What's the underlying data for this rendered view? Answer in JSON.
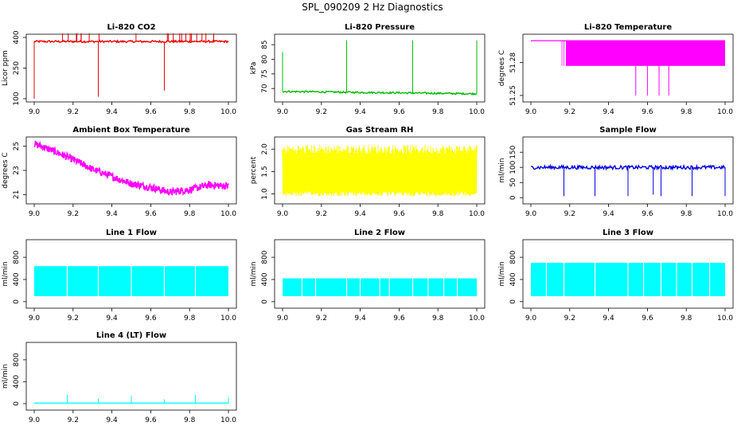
{
  "page_title": "SPL_090209  2 Hz Diagnostics",
  "chart_data": [
    {
      "type": "line",
      "title": "Li-820 CO2",
      "ylabel": "Licor ppm",
      "color": "#ee0000",
      "x": [
        9.0,
        10.0
      ],
      "xlim": [
        9.0,
        10.0
      ],
      "ylim": [
        100,
        400
      ],
      "xticks": [
        "9.0",
        "9.2",
        "9.4",
        "9.6",
        "9.8",
        "10.0"
      ],
      "yticks": [
        100,
        250,
        400
      ],
      "yticklabels": [
        "100",
        "250",
        "400"
      ],
      "series": [
        {
          "name": "CO2",
          "baseline": 380,
          "noise": 5,
          "spikes_up": 420,
          "dips": [
            [
              9.0,
              100
            ],
            [
              9.33,
              110
            ],
            [
              9.67,
              140
            ]
          ]
        }
      ]
    },
    {
      "type": "line",
      "title": "Li-820 Pressure",
      "ylabel": "kPa",
      "color": "#00bb00",
      "x": [
        9.0,
        10.0
      ],
      "xlim": [
        9.0,
        10.0
      ],
      "ylim": [
        66.5,
        87.5
      ],
      "xticks": [
        "9.0",
        "9.2",
        "9.4",
        "9.6",
        "9.8",
        "10.0"
      ],
      "yticks": [
        70,
        75,
        80,
        85
      ],
      "yticklabels": [
        "70",
        "75",
        "80",
        "85"
      ],
      "series": [
        {
          "name": "Pressure",
          "start": 69,
          "end": 68.2,
          "noise": 0.3,
          "spikes_up": [
            [
              9.0,
              82.5
            ],
            [
              9.33,
              86.5
            ],
            [
              9.67,
              86.5
            ],
            [
              10.0,
              86.5
            ]
          ]
        }
      ]
    },
    {
      "type": "line",
      "title": "Li-820 Temperature",
      "ylabel": "degrees C",
      "color": "#ff00ff",
      "x": [
        9.0,
        10.0
      ],
      "xlim": [
        9.0,
        10.0
      ],
      "ylim": [
        51.247,
        51.303
      ],
      "xticks": [
        "9.0",
        "9.2",
        "9.4",
        "9.6",
        "9.8",
        "10.0"
      ],
      "yticks": [
        51.25,
        51.28
      ],
      "yticklabels": [
        "51.25",
        "51.28"
      ],
      "series": [
        {
          "name": "Temperature",
          "high": 51.3,
          "low": 51.277,
          "band_start": 9.18,
          "dips": [
            [
              9.54,
              51.25
            ],
            [
              9.6,
              51.25
            ],
            [
              9.66,
              51.25
            ],
            [
              9.71,
              51.25
            ]
          ]
        }
      ]
    },
    {
      "type": "line",
      "title": "Ambient Box Temperature",
      "ylabel": "degrees C",
      "color": "#ff00ff",
      "x": [
        9.0,
        9.1,
        9.2,
        9.3,
        9.4,
        9.5,
        9.6,
        9.7,
        9.8,
        9.9,
        10.0
      ],
      "xlim": [
        9.0,
        10.0
      ],
      "ylim": [
        20.5,
        25.5
      ],
      "xticks": [
        "9.0",
        "9.2",
        "9.4",
        "9.6",
        "9.8",
        "10.0"
      ],
      "yticks": [
        21,
        23,
        25
      ],
      "yticklabels": [
        "21",
        "23",
        "25"
      ],
      "series": [
        {
          "name": "Ambient",
          "values": [
            25.2,
            24.6,
            23.9,
            23.1,
            22.5,
            21.9,
            21.6,
            21.2,
            21.4,
            21.8,
            21.7
          ],
          "noise": 0.3
        }
      ]
    },
    {
      "type": "line",
      "title": "Gas Stream RH",
      "ylabel": "percent",
      "color": "#ffff00",
      "x": [
        9.0,
        10.0
      ],
      "xlim": [
        9.0,
        10.0
      ],
      "ylim": [
        0.85,
        2.2
      ],
      "xticks": [
        "9.0",
        "9.2",
        "9.4",
        "9.6",
        "9.8",
        "10.0"
      ],
      "yticks": [
        1.0,
        1.5,
        2.0
      ],
      "yticklabels": [
        "1.0",
        "1.5",
        "2.0"
      ],
      "series": [
        {
          "name": "RH",
          "low": 1.05,
          "high": 1.9,
          "min": 0.95,
          "max": 2.1
        }
      ]
    },
    {
      "type": "line",
      "title": "Sample Flow",
      "ylabel": "ml/min",
      "color": "#0000dd",
      "x": [
        9.0,
        10.0
      ],
      "xlim": [
        9.0,
        10.0
      ],
      "ylim": [
        -10,
        190
      ],
      "xticks": [
        "9.0",
        "9.2",
        "9.4",
        "9.6",
        "9.8",
        "10.0"
      ],
      "yticks": [
        0,
        50,
        100,
        150
      ],
      "yticklabels": [
        "0",
        "50",
        "100",
        "150"
      ],
      "series": [
        {
          "name": "Sample",
          "baseline": 100,
          "noise": 6,
          "dips": [
            [
              9.17,
              5
            ],
            [
              9.33,
              5
            ],
            [
              9.5,
              5
            ],
            [
              9.63,
              10
            ],
            [
              9.67,
              5
            ],
            [
              9.83,
              5
            ],
            [
              10.0,
              5
            ]
          ]
        }
      ]
    },
    {
      "type": "line",
      "title": "Line 1 Flow",
      "ylabel": "ml/min",
      "color": "#00ffff",
      "x": [
        9.0,
        10.0
      ],
      "xlim": [
        9.0,
        10.0
      ],
      "ylim": [
        -60,
        1060
      ],
      "xticks": [
        "9.0",
        "9.2",
        "9.4",
        "9.6",
        "9.8",
        "10.0"
      ],
      "yticks": [
        0,
        400,
        800
      ],
      "yticklabels": [
        "0",
        "400",
        "800"
      ],
      "series": [
        {
          "name": "Line 1",
          "low": 100,
          "high": 640,
          "gaps": [
            9.17,
            9.33,
            9.5,
            9.67,
            9.83
          ]
        }
      ]
    },
    {
      "type": "line",
      "title": "Line 2 Flow",
      "ylabel": "ml/min",
      "color": "#00ffff",
      "x": [
        9.0,
        10.0
      ],
      "xlim": [
        9.0,
        10.0
      ],
      "ylim": [
        -60,
        1060
      ],
      "xticks": [
        "9.0",
        "9.2",
        "9.4",
        "9.6",
        "9.8",
        "10.0"
      ],
      "yticks": [
        0,
        400,
        800
      ],
      "yticklabels": [
        "0",
        "400",
        "800"
      ],
      "series": [
        {
          "name": "Line 2",
          "low": 100,
          "high": 420,
          "gaps": [
            9.1,
            9.17,
            9.33,
            9.4,
            9.5,
            9.55,
            9.67,
            9.75,
            9.83,
            9.9
          ]
        }
      ]
    },
    {
      "type": "line",
      "title": "Line 3 Flow",
      "ylabel": "ml/min",
      "color": "#00ffff",
      "x": [
        9.0,
        10.0
      ],
      "xlim": [
        9.0,
        10.0
      ],
      "ylim": [
        -60,
        1060
      ],
      "xticks": [
        "9.0",
        "9.2",
        "9.4",
        "9.6",
        "9.8",
        "10.0"
      ],
      "yticks": [
        0,
        400,
        800
      ],
      "yticklabels": [
        "0",
        "400",
        "800"
      ],
      "series": [
        {
          "name": "Line 3",
          "low": 100,
          "high": 700,
          "gaps": [
            9.08,
            9.17,
            9.33,
            9.5,
            9.58,
            9.67,
            9.75,
            9.83,
            9.92
          ]
        }
      ]
    },
    {
      "type": "line",
      "title": "Line 4 (LT) Flow",
      "ylabel": "ml/min",
      "color": "#00ffff",
      "x": [
        9.0,
        10.0
      ],
      "xlim": [
        9.0,
        10.0
      ],
      "ylim": [
        -60,
        1060
      ],
      "xticks": [
        "9.0",
        "9.2",
        "9.4",
        "9.6",
        "9.8",
        "10.0"
      ],
      "yticks": [
        0,
        400,
        800
      ],
      "yticklabels": [
        "0",
        "400",
        "800"
      ],
      "series": [
        {
          "name": "Line 4",
          "baseline": 10,
          "spikes_up": [
            [
              9.17,
              160
            ],
            [
              9.33,
              90
            ],
            [
              9.5,
              150
            ],
            [
              9.67,
              80
            ],
            [
              9.83,
              160
            ],
            [
              10.0,
              110
            ]
          ]
        }
      ]
    }
  ]
}
